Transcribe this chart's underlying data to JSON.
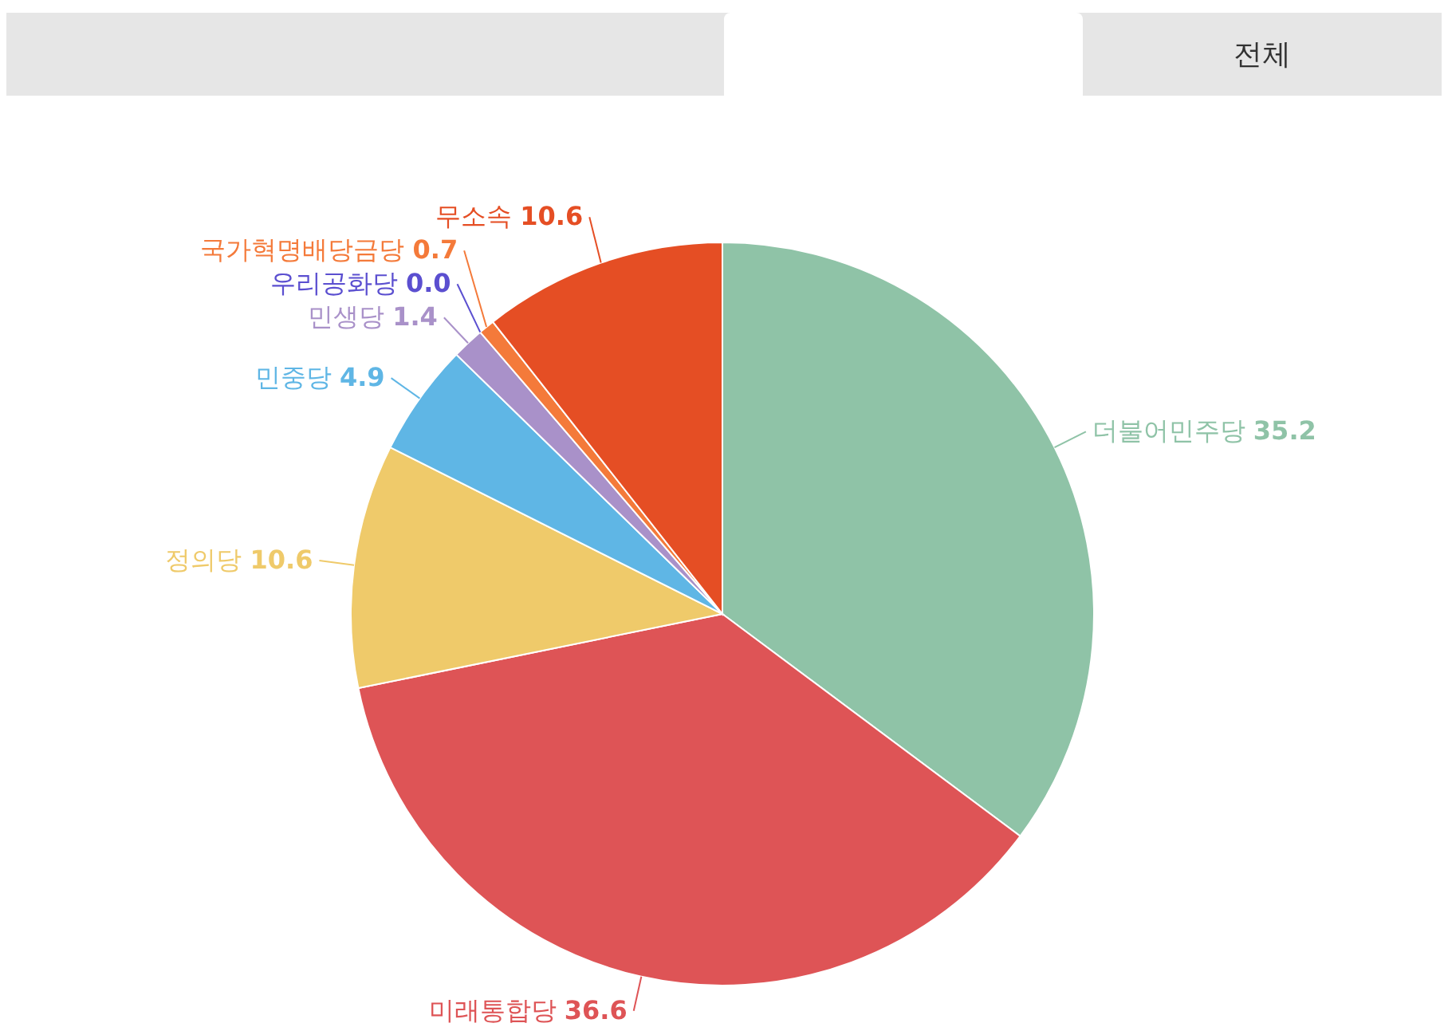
{
  "chart_data": {
    "type": "pie",
    "categories": [
      "더불어민주당",
      "미래통합당",
      "정의당",
      "민중당",
      "민생당",
      "우리공화당",
      "국가혁명배당금당",
      "무소속"
    ],
    "values": [
      35.2,
      36.6,
      10.6,
      4.9,
      1.4,
      0.0,
      0.7,
      10.6
    ],
    "colors": [
      "#8fc3a7",
      "#de5456",
      "#efca6a",
      "#5fb6e5",
      "#a991c9",
      "#5b4fd0",
      "#f47a3a",
      "#e54e24"
    ],
    "value_labels": [
      "35.2",
      "36.6",
      "10.6",
      "4.9",
      "1.4",
      "0.0",
      "0.7",
      "10.6"
    ],
    "annotations": [
      "전체"
    ]
  }
}
